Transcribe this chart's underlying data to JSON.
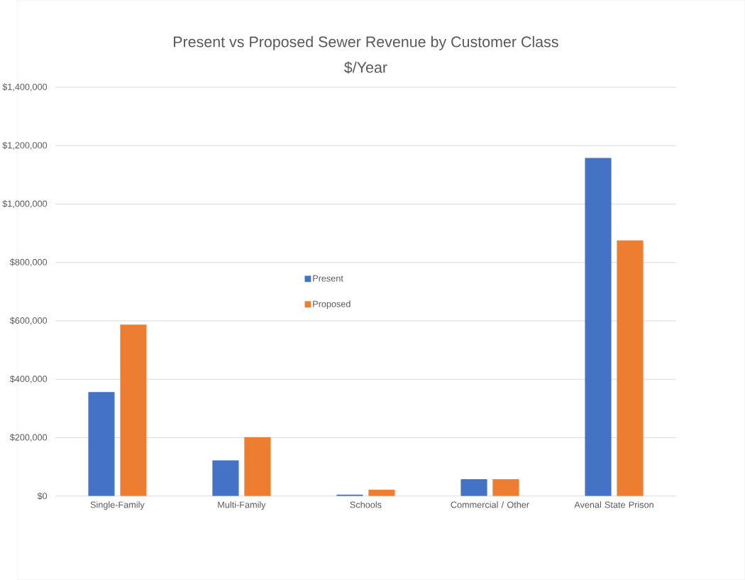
{
  "chart_data": {
    "type": "bar",
    "title": "Present vs Proposed Sewer Revenue by Customer Class",
    "subtitle": "$/Year",
    "categories": [
      "Single-Family",
      "Multi-Family",
      "Schools",
      "Commercial / Other",
      "Avenal State Prison"
    ],
    "series": [
      {
        "name": "Present",
        "color": "#4472c4",
        "values": [
          356000,
          122000,
          5000,
          58000,
          1158000
        ]
      },
      {
        "name": "Proposed",
        "color": "#ed7d31",
        "values": [
          587000,
          202000,
          22000,
          58000,
          876000
        ]
      }
    ],
    "ylim": [
      0,
      1400000
    ],
    "yticks": [
      {
        "value": 0,
        "label": "$0"
      },
      {
        "value": 200000,
        "label": "$200,000"
      },
      {
        "value": 400000,
        "label": "$400,000"
      },
      {
        "value": 600000,
        "label": "$600,000"
      },
      {
        "value": 800000,
        "label": "$800,000"
      },
      {
        "value": 1000000,
        "label": "$1,000,000"
      },
      {
        "value": 1200000,
        "label": "$1,200,000"
      },
      {
        "value": 1400000,
        "label": "$1,400,000"
      }
    ],
    "grid": "y",
    "legend": "center"
  }
}
